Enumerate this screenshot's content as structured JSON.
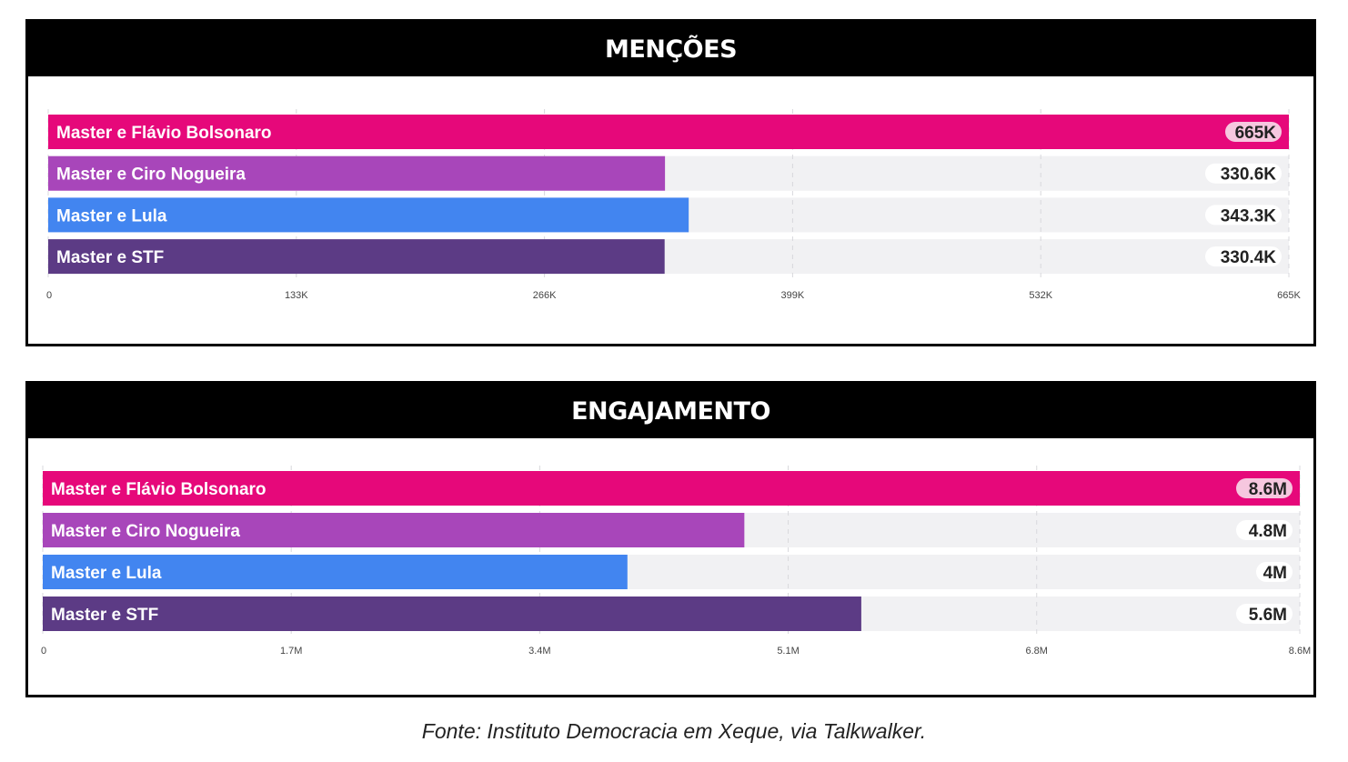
{
  "chart_data": [
    {
      "type": "bar",
      "orientation": "horizontal",
      "title": "MENÇÕES",
      "categories": [
        "Master e Flávio Bolsonaro",
        "Master e Ciro Nogueira",
        "Master e Lula",
        "Master e STF"
      ],
      "values": [
        665000,
        330600,
        343300,
        330400
      ],
      "value_labels": [
        "665K",
        "330.6K",
        "343.3K",
        "330.4K"
      ],
      "colors": [
        "#e6087a",
        "#a846ba",
        "#4285f0",
        "#5c3b85"
      ],
      "xlim": [
        0,
        665000
      ],
      "xticks": [
        0,
        133000,
        266000,
        399000,
        532000,
        665000
      ],
      "xtick_labels": [
        "0",
        "133K",
        "266K",
        "399K",
        "532K",
        "665K"
      ],
      "grid": true
    },
    {
      "type": "bar",
      "orientation": "horizontal",
      "title": "ENGAJAMENTO",
      "categories": [
        "Master e Flávio Bolsonaro",
        "Master e Ciro Nogueira",
        "Master e Lula",
        "Master e STF"
      ],
      "values": [
        8600000,
        4800000,
        4000000,
        5600000
      ],
      "value_labels": [
        "8.6M",
        "4.8M",
        "4M",
        "5.6M"
      ],
      "colors": [
        "#e6087a",
        "#a846ba",
        "#4285f0",
        "#5c3b85"
      ],
      "xlim": [
        0,
        8600000
      ],
      "xticks": [
        0,
        1700000,
        3400000,
        5100000,
        6800000,
        8600000
      ],
      "xtick_labels": [
        "0",
        "1.7M",
        "3.4M",
        "5.1M",
        "6.8M",
        "8.6M"
      ],
      "grid": true
    }
  ],
  "source": "Fonte: Instituto Democracia em Xeque, via Talkwalker."
}
